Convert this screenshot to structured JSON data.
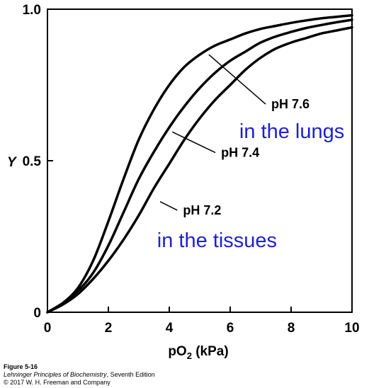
{
  "chart_data": {
    "type": "line",
    "xlabel_main": "pO",
    "xlabel_sub": "2",
    "xlabel_unit": " (kPa)",
    "ylabel": "Y",
    "xlim": [
      0,
      10
    ],
    "ylim": [
      0,
      1
    ],
    "xticks": [
      0,
      2,
      4,
      6,
      8,
      10
    ],
    "xtick_labels": [
      "0",
      "2",
      "4",
      "6",
      "8",
      "10"
    ],
    "yticks": [
      0,
      0.5,
      1
    ],
    "ytick_labels": [
      "0",
      "0.5",
      "1.0"
    ],
    "grid": false,
    "series": [
      {
        "name": "pH 7.6",
        "x": [
          0,
          0.5,
          1,
          1.5,
          2,
          2.5,
          3,
          3.5,
          4,
          4.5,
          5,
          5.5,
          6,
          6.5,
          7,
          7.5,
          8,
          8.5,
          9,
          9.5,
          10
        ],
        "y": [
          0,
          0.03,
          0.08,
          0.17,
          0.3,
          0.44,
          0.57,
          0.67,
          0.75,
          0.81,
          0.85,
          0.88,
          0.9,
          0.92,
          0.935,
          0.945,
          0.955,
          0.963,
          0.97,
          0.975,
          0.98
        ]
      },
      {
        "name": "pH 7.4",
        "x": [
          0,
          0.5,
          1,
          1.5,
          2,
          2.5,
          3,
          3.5,
          4,
          4.5,
          5,
          5.5,
          6,
          6.5,
          7,
          7.5,
          8,
          8.5,
          9,
          9.5,
          10
        ],
        "y": [
          0,
          0.03,
          0.07,
          0.13,
          0.22,
          0.33,
          0.44,
          0.53,
          0.61,
          0.68,
          0.74,
          0.79,
          0.83,
          0.86,
          0.89,
          0.91,
          0.925,
          0.938,
          0.948,
          0.957,
          0.965
        ]
      },
      {
        "name": "pH 7.2",
        "x": [
          0,
          0.5,
          1,
          1.5,
          2,
          2.5,
          3,
          3.5,
          4,
          4.5,
          5,
          5.5,
          6,
          6.5,
          7,
          7.5,
          8,
          8.5,
          9,
          9.5,
          10
        ],
        "y": [
          0,
          0.025,
          0.06,
          0.11,
          0.17,
          0.24,
          0.32,
          0.41,
          0.49,
          0.57,
          0.64,
          0.7,
          0.75,
          0.8,
          0.84,
          0.87,
          0.89,
          0.905,
          0.92,
          0.93,
          0.94
        ]
      }
    ],
    "series_labels": [
      {
        "text": "pH 7.6",
        "x": 7.35,
        "y": 0.675,
        "anchor": {
          "x": 5.3,
          "y": 0.85
        }
      },
      {
        "text": "pH 7.4",
        "x": 5.7,
        "y": 0.515,
        "anchor": {
          "x": 4.1,
          "y": 0.595
        }
      },
      {
        "text": "pH 7.2",
        "x": 4.45,
        "y": 0.325,
        "anchor": {
          "x": 3.7,
          "y": 0.365
        }
      }
    ],
    "annotations": [
      {
        "text": "in the lungs",
        "x": 6.3,
        "y": 0.575
      },
      {
        "text": "in the tissues",
        "x": 3.6,
        "y": 0.215
      }
    ]
  },
  "caption": {
    "figure": "Figure 5-16",
    "book_title": "Lehninger Principles of Biochemistry",
    "book_edition": ", Seventh Edition",
    "copyright": "© 2017 W. H. Freeman and Company"
  }
}
